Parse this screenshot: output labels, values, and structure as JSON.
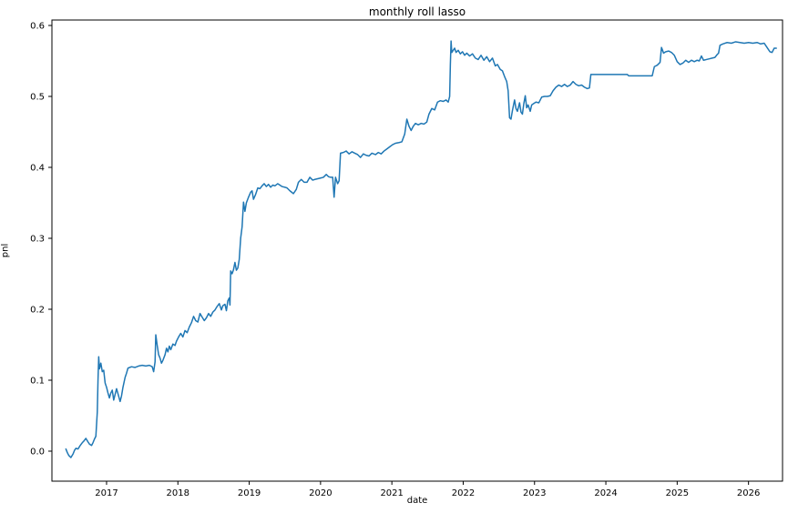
{
  "chart_data": {
    "type": "line",
    "title": "monthly roll lasso",
    "xlabel": "date",
    "ylabel": "pnl",
    "grid": false,
    "legend_position": "none",
    "line_color": "#1f77b4",
    "background_color": "#ffffff",
    "spine_color": "#000000",
    "xlim": [
      2016.234,
      2026.477
    ],
    "ylim": [
      -0.0423,
      0.6077
    ],
    "x_ticks": [
      2017,
      2018,
      2019,
      2020,
      2021,
      2022,
      2023,
      2024,
      2025,
      2026
    ],
    "x_tick_labels": [
      "2017",
      "2018",
      "2019",
      "2020",
      "2021",
      "2022",
      "2023",
      "2024",
      "2025",
      "2026"
    ],
    "y_ticks": [
      0.0,
      0.1,
      0.2,
      0.3,
      0.4,
      0.5,
      0.6
    ],
    "y_tick_labels": [
      "0.0",
      "0.1",
      "0.2",
      "0.3",
      "0.4",
      "0.5",
      "0.6"
    ],
    "series": [
      {
        "name": "pnl",
        "x": [
          2016.43,
          2016.45,
          2016.47,
          2016.5,
          2016.53,
          2016.55,
          2016.57,
          2016.6,
          2016.63,
          2016.66,
          2016.68,
          2016.71,
          2016.74,
          2016.76,
          2016.79,
          2016.81,
          2016.83,
          2016.85,
          2016.87,
          2016.88,
          2016.89,
          2016.9,
          2016.92,
          2016.94,
          2016.96,
          2016.98,
          2017.0,
          2017.02,
          2017.04,
          2017.06,
          2017.08,
          2017.1,
          2017.12,
          2017.14,
          2017.16,
          2017.19,
          2017.21,
          2017.23,
          2017.26,
          2017.28,
          2017.3,
          2017.35,
          2017.4,
          2017.45,
          2017.5,
          2017.55,
          2017.6,
          2017.64,
          2017.66,
          2017.68,
          2017.69,
          2017.71,
          2017.73,
          2017.75,
          2017.77,
          2017.79,
          2017.82,
          2017.84,
          2017.86,
          2017.88,
          2017.9,
          2017.93,
          2017.96,
          2017.98,
          2018.01,
          2018.04,
          2018.07,
          2018.1,
          2018.13,
          2018.16,
          2018.19,
          2018.22,
          2018.25,
          2018.28,
          2018.31,
          2018.34,
          2018.37,
          2018.4,
          2018.43,
          2018.46,
          2018.49,
          2018.52,
          2018.55,
          2018.58,
          2018.61,
          2018.63,
          2018.66,
          2018.68,
          2018.7,
          2018.72,
          2018.73,
          2018.74,
          2018.76,
          2018.78,
          2018.8,
          2018.82,
          2018.84,
          2018.86,
          2018.88,
          2018.9,
          2018.92,
          2018.94,
          2018.96,
          2018.99,
          2019.02,
          2019.04,
          2019.06,
          2019.09,
          2019.12,
          2019.15,
          2019.18,
          2019.21,
          2019.24,
          2019.27,
          2019.3,
          2019.33,
          2019.36,
          2019.4,
          2019.43,
          2019.46,
          2019.5,
          2019.53,
          2019.57,
          2019.62,
          2019.66,
          2019.69,
          2019.73,
          2019.77,
          2019.81,
          2019.85,
          2019.89,
          2019.92,
          2019.96,
          2020.0,
          2020.04,
          2020.08,
          2020.11,
          2020.14,
          2020.17,
          2020.19,
          2020.21,
          2020.24,
          2020.26,
          2020.28,
          2020.32,
          2020.36,
          2020.4,
          2020.44,
          2020.48,
          2020.52,
          2020.56,
          2020.6,
          2020.64,
          2020.68,
          2020.72,
          2020.77,
          2020.81,
          2020.85,
          2020.89,
          2020.93,
          2020.97,
          2021.01,
          2021.05,
          2021.1,
          2021.14,
          2021.18,
          2021.21,
          2021.24,
          2021.27,
          2021.3,
          2021.33,
          2021.37,
          2021.41,
          2021.45,
          2021.49,
          2021.52,
          2021.56,
          2021.6,
          2021.64,
          2021.68,
          2021.72,
          2021.76,
          2021.79,
          2021.81,
          2021.82,
          2021.83,
          2021.84,
          2021.86,
          2021.88,
          2021.9,
          2021.93,
          2021.96,
          2021.99,
          2022.02,
          2022.05,
          2022.09,
          2022.13,
          2022.17,
          2022.21,
          2022.25,
          2022.29,
          2022.33,
          2022.37,
          2022.41,
          2022.45,
          2022.48,
          2022.52,
          2022.55,
          2022.58,
          2022.61,
          2022.63,
          2022.65,
          2022.67,
          2022.69,
          2022.72,
          2022.74,
          2022.76,
          2022.79,
          2022.81,
          2022.83,
          2022.85,
          2022.87,
          2022.89,
          2022.91,
          2022.94,
          2022.96,
          2022.99,
          2023.02,
          2023.06,
          2023.1,
          2023.14,
          2023.18,
          2023.22,
          2023.26,
          2023.3,
          2023.34,
          2023.38,
          2023.42,
          2023.46,
          2023.5,
          2023.54,
          2023.58,
          2023.62,
          2023.66,
          2023.7,
          2023.74,
          2023.77,
          2023.79,
          2024.3,
          2024.32,
          2024.65,
          2024.68,
          2024.72,
          2024.76,
          2024.78,
          2024.81,
          2024.84,
          2024.88,
          2024.92,
          2024.96,
          2025.0,
          2025.04,
          2025.08,
          2025.12,
          2025.16,
          2025.2,
          2025.24,
          2025.28,
          2025.31,
          2025.34,
          2025.37,
          2025.41,
          2025.45,
          2025.49,
          2025.53,
          2025.56,
          2025.58,
          2025.6,
          2025.64,
          2025.7,
          2025.76,
          2025.82,
          2025.88,
          2025.94,
          2026.0,
          2026.06,
          2026.12,
          2026.17,
          2026.22,
          2026.26,
          2026.3,
          2026.33,
          2026.36,
          2026.39
        ],
        "y": [
          0.003,
          -0.002,
          -0.006,
          -0.009,
          -0.004,
          0.001,
          0.004,
          0.003,
          0.008,
          0.012,
          0.014,
          0.018,
          0.013,
          0.01,
          0.008,
          0.012,
          0.017,
          0.021,
          0.055,
          0.1,
          0.133,
          0.116,
          0.124,
          0.112,
          0.114,
          0.096,
          0.09,
          0.082,
          0.075,
          0.082,
          0.086,
          0.072,
          0.08,
          0.088,
          0.081,
          0.07,
          0.078,
          0.09,
          0.104,
          0.11,
          0.117,
          0.119,
          0.118,
          0.12,
          0.121,
          0.12,
          0.121,
          0.119,
          0.112,
          0.126,
          0.164,
          0.149,
          0.136,
          0.131,
          0.124,
          0.128,
          0.136,
          0.145,
          0.14,
          0.148,
          0.143,
          0.151,
          0.149,
          0.155,
          0.161,
          0.166,
          0.161,
          0.17,
          0.167,
          0.175,
          0.181,
          0.19,
          0.184,
          0.182,
          0.194,
          0.189,
          0.184,
          0.188,
          0.194,
          0.19,
          0.196,
          0.199,
          0.204,
          0.208,
          0.199,
          0.205,
          0.207,
          0.198,
          0.212,
          0.216,
          0.206,
          0.254,
          0.25,
          0.256,
          0.266,
          0.255,
          0.258,
          0.27,
          0.3,
          0.316,
          0.351,
          0.338,
          0.35,
          0.358,
          0.365,
          0.367,
          0.355,
          0.362,
          0.371,
          0.37,
          0.374,
          0.377,
          0.373,
          0.376,
          0.372,
          0.375,
          0.374,
          0.377,
          0.375,
          0.373,
          0.372,
          0.371,
          0.367,
          0.363,
          0.369,
          0.379,
          0.383,
          0.379,
          0.379,
          0.386,
          0.382,
          0.383,
          0.384,
          0.385,
          0.386,
          0.39,
          0.387,
          0.386,
          0.386,
          0.358,
          0.386,
          0.377,
          0.381,
          0.42,
          0.421,
          0.423,
          0.419,
          0.422,
          0.42,
          0.418,
          0.414,
          0.419,
          0.417,
          0.416,
          0.42,
          0.418,
          0.421,
          0.419,
          0.423,
          0.426,
          0.429,
          0.432,
          0.434,
          0.435,
          0.436,
          0.447,
          0.468,
          0.458,
          0.452,
          0.458,
          0.462,
          0.46,
          0.462,
          0.461,
          0.464,
          0.475,
          0.483,
          0.481,
          0.492,
          0.494,
          0.493,
          0.495,
          0.492,
          0.5,
          0.545,
          0.578,
          0.562,
          0.565,
          0.568,
          0.562,
          0.565,
          0.56,
          0.563,
          0.558,
          0.561,
          0.557,
          0.56,
          0.554,
          0.552,
          0.558,
          0.551,
          0.556,
          0.549,
          0.554,
          0.543,
          0.545,
          0.538,
          0.536,
          0.528,
          0.521,
          0.508,
          0.47,
          0.468,
          0.48,
          0.495,
          0.483,
          0.479,
          0.491,
          0.478,
          0.475,
          0.49,
          0.501,
          0.484,
          0.488,
          0.479,
          0.488,
          0.49,
          0.492,
          0.491,
          0.499,
          0.5,
          0.5,
          0.501,
          0.508,
          0.513,
          0.516,
          0.514,
          0.517,
          0.514,
          0.516,
          0.521,
          0.517,
          0.515,
          0.516,
          0.513,
          0.511,
          0.512,
          0.531,
          0.531,
          0.529,
          0.529,
          0.542,
          0.544,
          0.548,
          0.569,
          0.561,
          0.563,
          0.564,
          0.562,
          0.558,
          0.549,
          0.545,
          0.547,
          0.551,
          0.548,
          0.551,
          0.549,
          0.551,
          0.55,
          0.557,
          0.551,
          0.552,
          0.553,
          0.554,
          0.555,
          0.559,
          0.561,
          0.572,
          0.574,
          0.576,
          0.575,
          0.577,
          0.576,
          0.575,
          0.576,
          0.575,
          0.576,
          0.574,
          0.575,
          0.569,
          0.563,
          0.562,
          0.568,
          0.568
        ]
      }
    ]
  }
}
